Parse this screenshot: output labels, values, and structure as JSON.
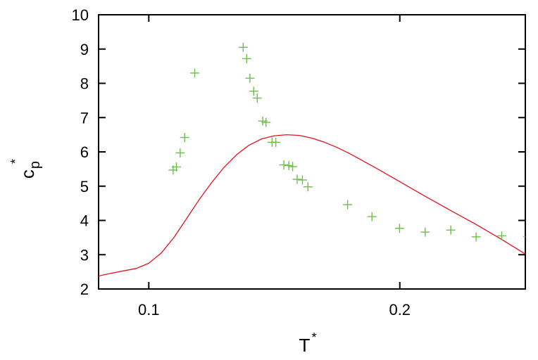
{
  "chart_data": {
    "type": "scatter",
    "xlabel": {
      "base": "T",
      "sup": "*"
    },
    "ylabel": {
      "base": "c",
      "sub": "p",
      "sup": "*"
    },
    "xlim": [
      0.08,
      0.25
    ],
    "ylim": [
      2,
      10
    ],
    "x_ticks": [
      0.1,
      0.2
    ],
    "x_tick_labels": [
      "0.1",
      "0.2"
    ],
    "y_ticks": [
      2,
      3,
      4,
      5,
      6,
      7,
      8,
      9,
      10
    ],
    "y_tick_labels": [
      "2",
      "3",
      "4",
      "5",
      "6",
      "7",
      "8",
      "9",
      "10"
    ],
    "grid": false,
    "series": [
      {
        "kind": "line",
        "color": "#e0141e",
        "x": [
          0.08,
          0.085,
          0.09,
          0.095,
          0.1,
          0.105,
          0.11,
          0.115,
          0.12,
          0.125,
          0.13,
          0.135,
          0.14,
          0.145,
          0.15,
          0.155,
          0.16,
          0.165,
          0.17,
          0.175,
          0.18,
          0.19,
          0.2,
          0.21,
          0.22,
          0.23,
          0.24,
          0.25
        ],
        "y": [
          2.38,
          2.46,
          2.53,
          2.6,
          2.75,
          3.05,
          3.5,
          4.05,
          4.6,
          5.1,
          5.55,
          5.92,
          6.2,
          6.38,
          6.47,
          6.5,
          6.48,
          6.4,
          6.28,
          6.13,
          5.95,
          5.55,
          5.13,
          4.71,
          4.3,
          3.9,
          3.47,
          3.02
        ]
      },
      {
        "kind": "scatter",
        "marker": "plus",
        "color": "#6cc04a",
        "x": [
          0.1097,
          0.111,
          0.1125,
          0.1143,
          0.1183,
          0.1376,
          0.139,
          0.1403,
          0.1418,
          0.1432,
          0.1454,
          0.1467,
          0.1491,
          0.1506,
          0.1538,
          0.1558,
          0.1573,
          0.1591,
          0.1612,
          0.1634,
          0.1792,
          0.1889,
          0.1999,
          0.2101,
          0.2203,
          0.2304,
          0.2406,
          0.251
        ],
        "y": [
          5.47,
          5.56,
          5.97,
          6.42,
          8.3,
          9.05,
          8.72,
          8.15,
          7.77,
          7.57,
          6.9,
          6.86,
          6.28,
          6.28,
          5.62,
          5.6,
          5.57,
          5.2,
          5.18,
          4.98,
          4.46,
          4.11,
          3.77,
          3.66,
          3.72,
          3.52,
          3.55,
          3.53
        ]
      }
    ]
  }
}
